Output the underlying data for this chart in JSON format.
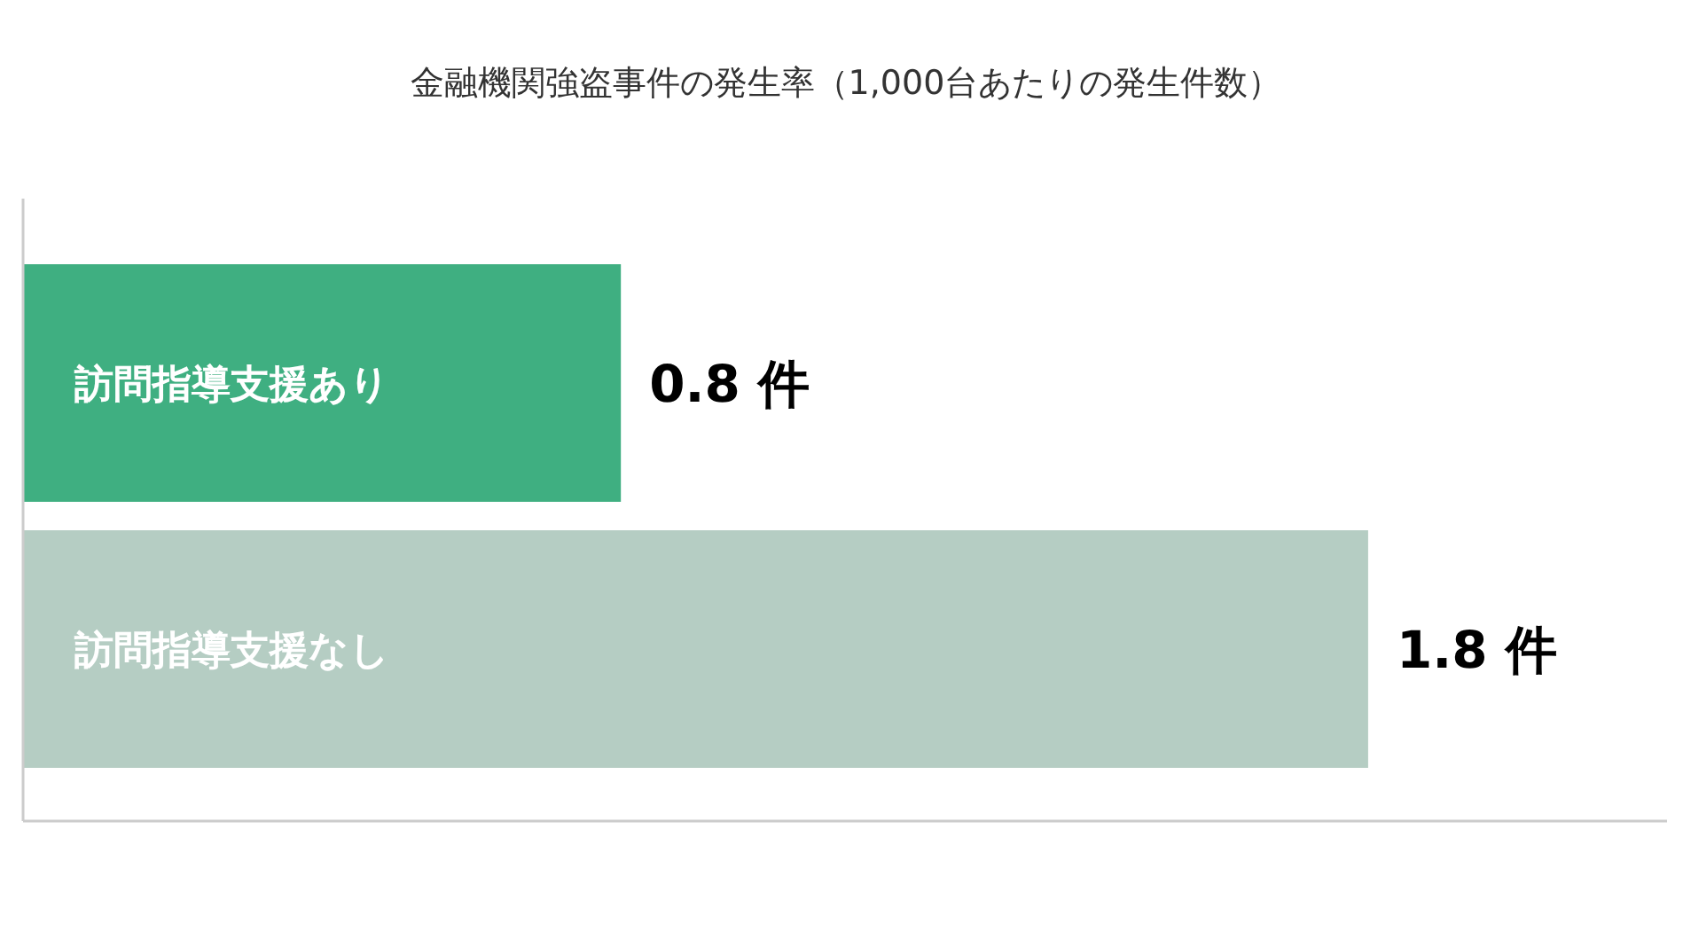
{
  "chart_data": {
    "type": "bar",
    "orientation": "horizontal",
    "title": "金融機関強盗事件の発生率（1,000台あたりの発生件数）",
    "categories": [
      "訪問指導支援あり",
      "訪問指導支援なし"
    ],
    "values": [
      0.8,
      1.8
    ],
    "colors": [
      "#3faf81",
      "#b5cdc3"
    ],
    "value_labels": [
      "0.8 件",
      "1.8 件"
    ],
    "xlim": [
      0,
      2.2
    ],
    "tick_labels": "y"
  }
}
